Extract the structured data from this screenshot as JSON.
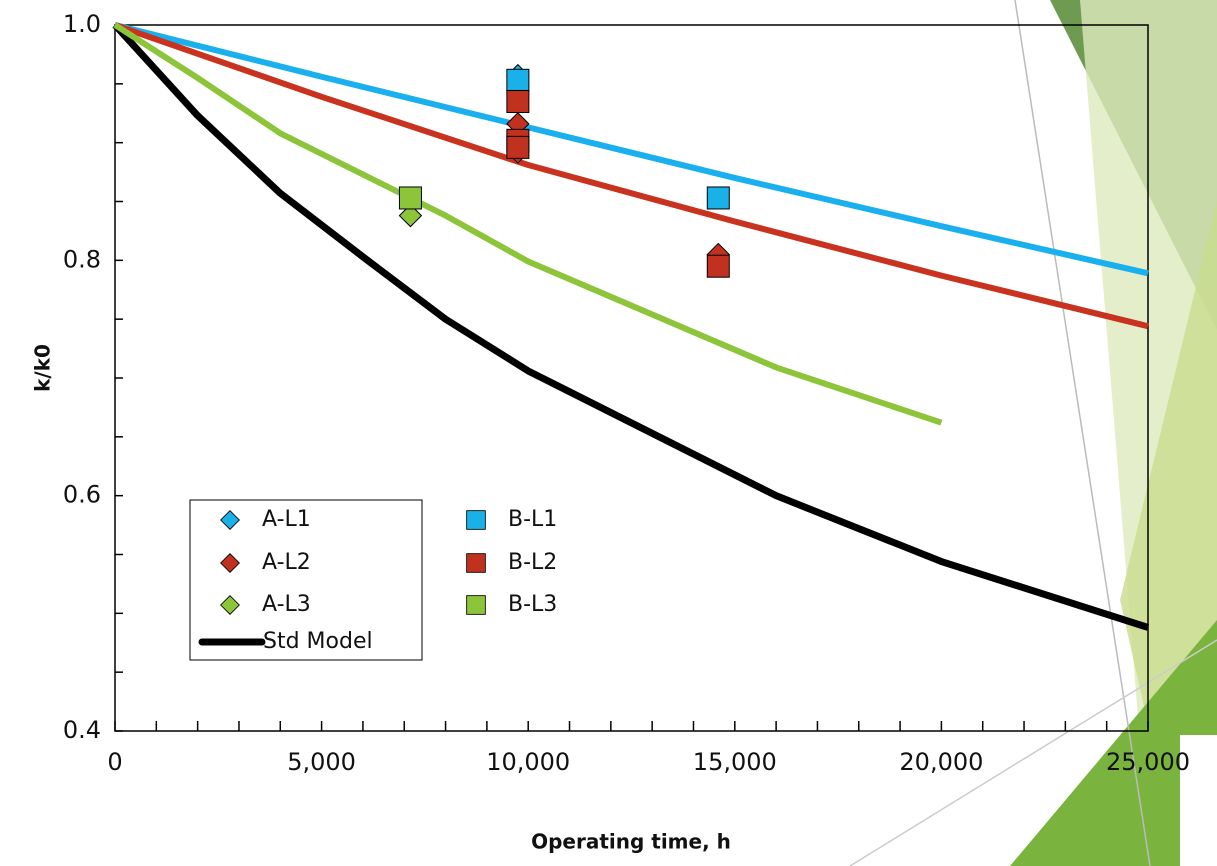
{
  "chart_data": {
    "type": "line",
    "x_label": "Operating time, h",
    "y_label": "k/k0",
    "xlim": [
      0,
      25000
    ],
    "xticks": [
      0,
      {
        "value": 5000,
        "label": "5,000"
      },
      {
        "value": 10000,
        "label": "10,000"
      },
      {
        "value": 15000,
        "label": "15,000"
      },
      {
        "value": 20000,
        "label": "20,000"
      },
      {
        "value": 25000,
        "label": "25,000"
      }
    ],
    "xminorticks": [
      1000,
      2000,
      3000,
      4000,
      6000,
      7000,
      8000,
      9000,
      11000,
      12000,
      13000,
      14000,
      16000,
      17000,
      18000,
      19000,
      21000,
      22000,
      23000,
      24000
    ],
    "ylim": [
      0.4,
      1.0
    ],
    "yticks": [
      0.4,
      0.6,
      0.8,
      {
        "value": 1.0,
        "label": "1.0"
      }
    ],
    "yminorticks": [
      0.45,
      0.5,
      0.55,
      0.65,
      0.7,
      0.75,
      0.85,
      0.9,
      0.95
    ],
    "series": [
      {
        "name": "A-L1",
        "color": "#1ab0e8",
        "marker": "diamond",
        "x": [
          9750
        ],
        "values": [
          0.957
        ]
      },
      {
        "name": "B-L1",
        "color": "#1ab0e8",
        "marker": "square",
        "x": [
          9750,
          14600
        ],
        "values": [
          0.953,
          0.853
        ]
      },
      {
        "name": "A-L2",
        "color": "#c0311f",
        "marker": "diamond",
        "x": [
          9750,
          9750,
          14600
        ],
        "values": [
          0.916,
          0.892,
          0.805
        ]
      },
      {
        "name": "B-L2",
        "color": "#c0311f",
        "marker": "square",
        "x": [
          9750,
          9750,
          9750,
          14600
        ],
        "values": [
          0.935,
          0.902,
          0.896,
          0.795
        ]
      },
      {
        "name": "A-L3",
        "color": "#8cc43a",
        "marker": "diamond",
        "x": [
          7150
        ],
        "values": [
          0.838
        ]
      },
      {
        "name": "B-L3",
        "color": "#8cc43a",
        "marker": "square",
        "x": [
          7150
        ],
        "values": [
          0.853
        ]
      },
      {
        "name": "Std Model",
        "color": "#000000",
        "marker": null,
        "x": [
          0,
          2000,
          4000,
          6000,
          8000,
          10000,
          16000,
          20000,
          25000
        ],
        "values": [
          1.0,
          0.923,
          0.857,
          0.803,
          0.75,
          0.706,
          0.6,
          0.544,
          0.488
        ]
      },
      {
        "color": "#1ab0f0",
        "marker": null,
        "x": [
          0,
          5000,
          10000,
          15000,
          20000,
          25000
        ],
        "values": [
          1.0,
          0.956,
          0.913,
          0.87,
          0.829,
          0.789
        ]
      },
      {
        "color": "#c8321e",
        "marker": null,
        "x": [
          0,
          5000,
          10000,
          15000,
          20000,
          25000
        ],
        "values": [
          1.0,
          0.939,
          0.881,
          0.833,
          0.787,
          0.744
        ]
      },
      {
        "color": "#8cc43a",
        "marker": null,
        "x": [
          0,
          2000,
          4000,
          8000,
          10000,
          16000,
          20000
        ],
        "values": [
          1.0,
          0.955,
          0.908,
          0.838,
          0.799,
          0.709,
          0.662
        ]
      }
    ]
  }
}
